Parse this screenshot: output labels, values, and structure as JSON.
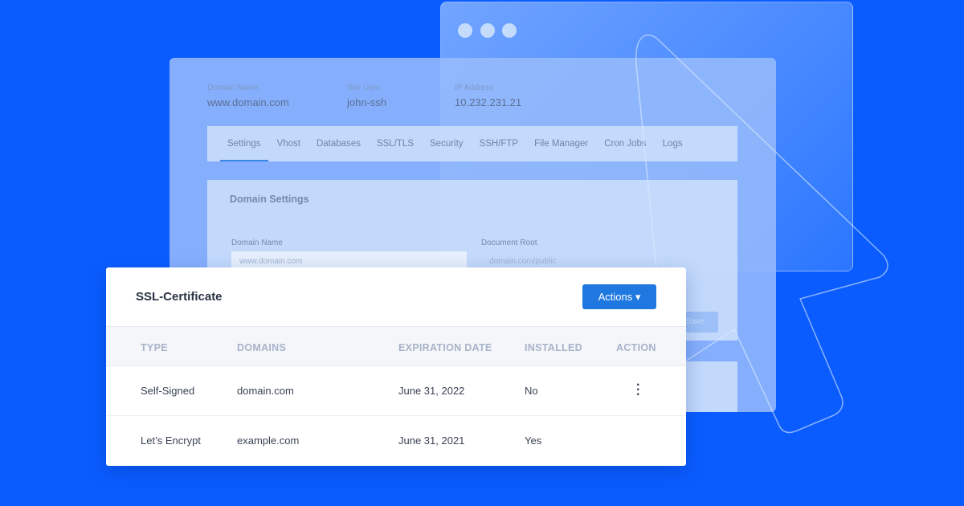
{
  "background_color": "#0a5cff",
  "header": {
    "fields": [
      {
        "label": "Domain Name",
        "value": "www.domain.com"
      },
      {
        "label": "Site User",
        "value": "john-ssh"
      },
      {
        "label": "IP Address",
        "value": "10.232.231.21"
      }
    ]
  },
  "tabs": [
    {
      "label": "Settings",
      "active": true
    },
    {
      "label": "Vhost"
    },
    {
      "label": "Databases"
    },
    {
      "label": "SSL/TLS"
    },
    {
      "label": "Security"
    },
    {
      "label": "SSH/FTP"
    },
    {
      "label": "File Manager"
    },
    {
      "label": "Cron Jobs"
    },
    {
      "label": "Logs"
    }
  ],
  "domain_settings": {
    "title": "Domain Settings",
    "domain_name_label": "Domain Name",
    "domain_name_placeholder": "www.domain.com",
    "document_root_label": "Document Root",
    "document_root_placeholder": "domain.com/public",
    "save_label": "Save"
  },
  "ssl": {
    "title": "SSL-Certificate",
    "actions_label": "Actions ▾",
    "accent": "#1f78e0",
    "columns": [
      "TYPE",
      "DOMAINS",
      "EXPIRATION DATE",
      "INSTALLED",
      "ACTION"
    ],
    "rows": [
      {
        "type": "Self-Signed",
        "domain": "domain.com",
        "expiration": "June 31, 2022",
        "installed": "No",
        "action": "more-vertical-icon"
      },
      {
        "type": "Let’s Encrypt",
        "domain": "example.com",
        "expiration": "June 31, 2021",
        "installed": "Yes"
      }
    ]
  }
}
